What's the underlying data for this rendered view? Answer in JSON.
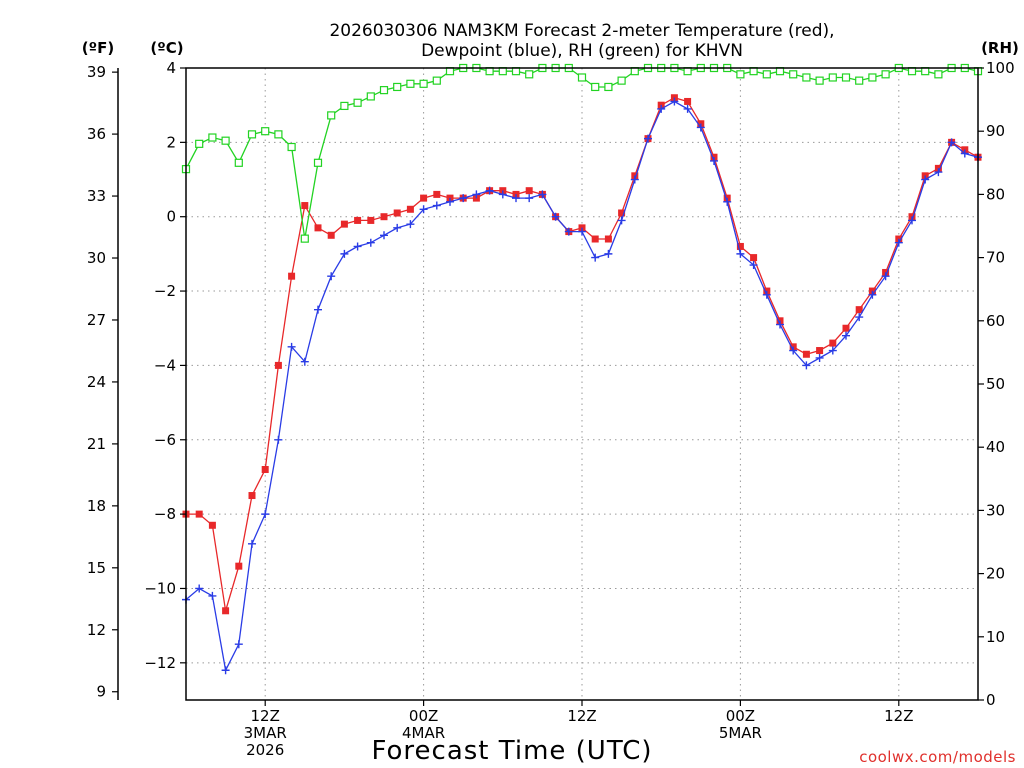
{
  "chart_data": {
    "type": "line",
    "title_line1": "2026030306 NAM3KM Forecast 2-meter Temperature (red),",
    "title_line2": "Dewpoint (blue), RH (green) for KHVN",
    "xlabel": "Forecast Time (UTC)",
    "credit": "coolwx.com/models",
    "units": {
      "fahrenheit": "(ºF)",
      "celsius": "(ºC)",
      "rh": "(RH)"
    },
    "x_range_hours": [
      6,
      66
    ],
    "y_celsius_range": [
      -13,
      4
    ],
    "y_rh_range": [
      0,
      100
    ],
    "celsius_ticks": [
      {
        "value": 4,
        "label": "4"
      },
      {
        "value": 2,
        "label": "2"
      },
      {
        "value": 0,
        "label": "0"
      },
      {
        "value": -2,
        "label": "−2"
      },
      {
        "value": -4,
        "label": "−4"
      },
      {
        "value": -6,
        "label": "−6"
      },
      {
        "value": -8,
        "label": "−8"
      },
      {
        "value": -10,
        "label": "−10"
      },
      {
        "value": -12,
        "label": "−12"
      }
    ],
    "fahrenheit_ticks": [
      "39",
      "36",
      "33",
      "30",
      "27",
      "24",
      "21",
      "18",
      "15",
      "12",
      "9"
    ],
    "rh_ticks": [
      "100",
      "90",
      "80",
      "70",
      "60",
      "50",
      "40",
      "30",
      "20",
      "10",
      "0"
    ],
    "x_ticks": [
      {
        "hour": 12,
        "lines": [
          "12Z",
          "3MAR",
          "2026"
        ]
      },
      {
        "hour": 24,
        "lines": [
          "00Z",
          "4MAR"
        ]
      },
      {
        "hour": 36,
        "lines": [
          "12Z"
        ]
      },
      {
        "hour": 48,
        "lines": [
          "00Z",
          "5MAR"
        ]
      },
      {
        "hour": 60,
        "lines": [
          "12Z"
        ]
      }
    ],
    "series": [
      {
        "name": "Temperature",
        "unit": "C",
        "color": "#e8282a",
        "marker": "filled-square",
        "x": [
          6,
          7,
          8,
          9,
          10,
          11,
          12,
          13,
          14,
          15,
          16,
          17,
          18,
          19,
          20,
          21,
          22,
          23,
          24,
          25,
          26,
          27,
          28,
          29,
          30,
          31,
          32,
          33,
          34,
          35,
          36,
          37,
          38,
          39,
          40,
          41,
          42,
          43,
          44,
          45,
          46,
          47,
          48,
          49,
          50,
          51,
          52,
          53,
          54,
          55,
          56,
          57,
          58,
          59,
          60,
          61,
          62,
          63,
          64,
          65,
          66
        ],
        "values": [
          -8.0,
          -8.0,
          -8.3,
          -10.6,
          -9.4,
          -7.5,
          -6.8,
          -4.0,
          -1.6,
          0.3,
          -0.3,
          -0.5,
          -0.2,
          -0.1,
          -0.1,
          0.0,
          0.1,
          0.2,
          0.5,
          0.6,
          0.5,
          0.5,
          0.5,
          0.7,
          0.7,
          0.6,
          0.7,
          0.6,
          0.0,
          -0.4,
          -0.3,
          -0.6,
          -0.6,
          0.1,
          1.1,
          2.1,
          3.0,
          3.2,
          3.1,
          2.5,
          1.6,
          0.5,
          -0.8,
          -1.1,
          -2.0,
          -2.8,
          -3.5,
          -3.7,
          -3.6,
          -3.4,
          -3.0,
          -2.5,
          -2.0,
          -1.5,
          -0.6,
          0.0,
          1.1,
          1.3,
          2.0,
          1.8,
          1.6
        ]
      },
      {
        "name": "Dewpoint",
        "unit": "C",
        "color": "#2a3ce6",
        "marker": "plus",
        "x": [
          6,
          7,
          8,
          9,
          10,
          11,
          12,
          13,
          14,
          15,
          16,
          17,
          18,
          19,
          20,
          21,
          22,
          23,
          24,
          25,
          26,
          27,
          28,
          29,
          30,
          31,
          32,
          33,
          34,
          35,
          36,
          37,
          38,
          39,
          40,
          41,
          42,
          43,
          44,
          45,
          46,
          47,
          48,
          49,
          50,
          51,
          52,
          53,
          54,
          55,
          56,
          57,
          58,
          59,
          60,
          61,
          62,
          63,
          64,
          65,
          66
        ],
        "values": [
          -10.3,
          -10.0,
          -10.2,
          -12.2,
          -11.5,
          -8.8,
          -8.0,
          -6.0,
          -3.5,
          -3.9,
          -2.5,
          -1.6,
          -1.0,
          -0.8,
          -0.7,
          -0.5,
          -0.3,
          -0.2,
          0.2,
          0.3,
          0.4,
          0.5,
          0.6,
          0.7,
          0.6,
          0.5,
          0.5,
          0.6,
          0.0,
          -0.4,
          -0.4,
          -1.1,
          -1.0,
          -0.1,
          1.0,
          2.1,
          2.9,
          3.1,
          2.9,
          2.4,
          1.5,
          0.4,
          -1.0,
          -1.3,
          -2.1,
          -2.9,
          -3.6,
          -4.0,
          -3.8,
          -3.6,
          -3.2,
          -2.7,
          -2.1,
          -1.6,
          -0.7,
          -0.1,
          1.0,
          1.2,
          2.0,
          1.7,
          1.6
        ]
      },
      {
        "name": "RH",
        "unit": "%",
        "color": "#22d322",
        "marker": "open-square",
        "x": [
          6,
          7,
          8,
          9,
          10,
          11,
          12,
          13,
          14,
          15,
          16,
          17,
          18,
          19,
          20,
          21,
          22,
          23,
          24,
          25,
          26,
          27,
          28,
          29,
          30,
          31,
          32,
          33,
          34,
          35,
          36,
          37,
          38,
          39,
          40,
          41,
          42,
          43,
          44,
          45,
          46,
          47,
          48,
          49,
          50,
          51,
          52,
          53,
          54,
          55,
          56,
          57,
          58,
          59,
          60,
          61,
          62,
          63,
          64,
          65,
          66
        ],
        "values": [
          84,
          88,
          89,
          88.5,
          85,
          89.5,
          90,
          89.5,
          87.5,
          73,
          85,
          92.5,
          94,
          94.5,
          95.5,
          96.5,
          97,
          97.5,
          97.5,
          98,
          99.5,
          100,
          100,
          99.5,
          99.5,
          99.5,
          99,
          100,
          100,
          100,
          98.5,
          97,
          97,
          98,
          99.5,
          100,
          100,
          100,
          99.5,
          100,
          100,
          100,
          99,
          99.5,
          99,
          99.5,
          99,
          98.5,
          98,
          98.5,
          98.5,
          98,
          98.5,
          99,
          100,
          99.5,
          99.5,
          99,
          100,
          100,
          99.5
        ]
      }
    ]
  }
}
